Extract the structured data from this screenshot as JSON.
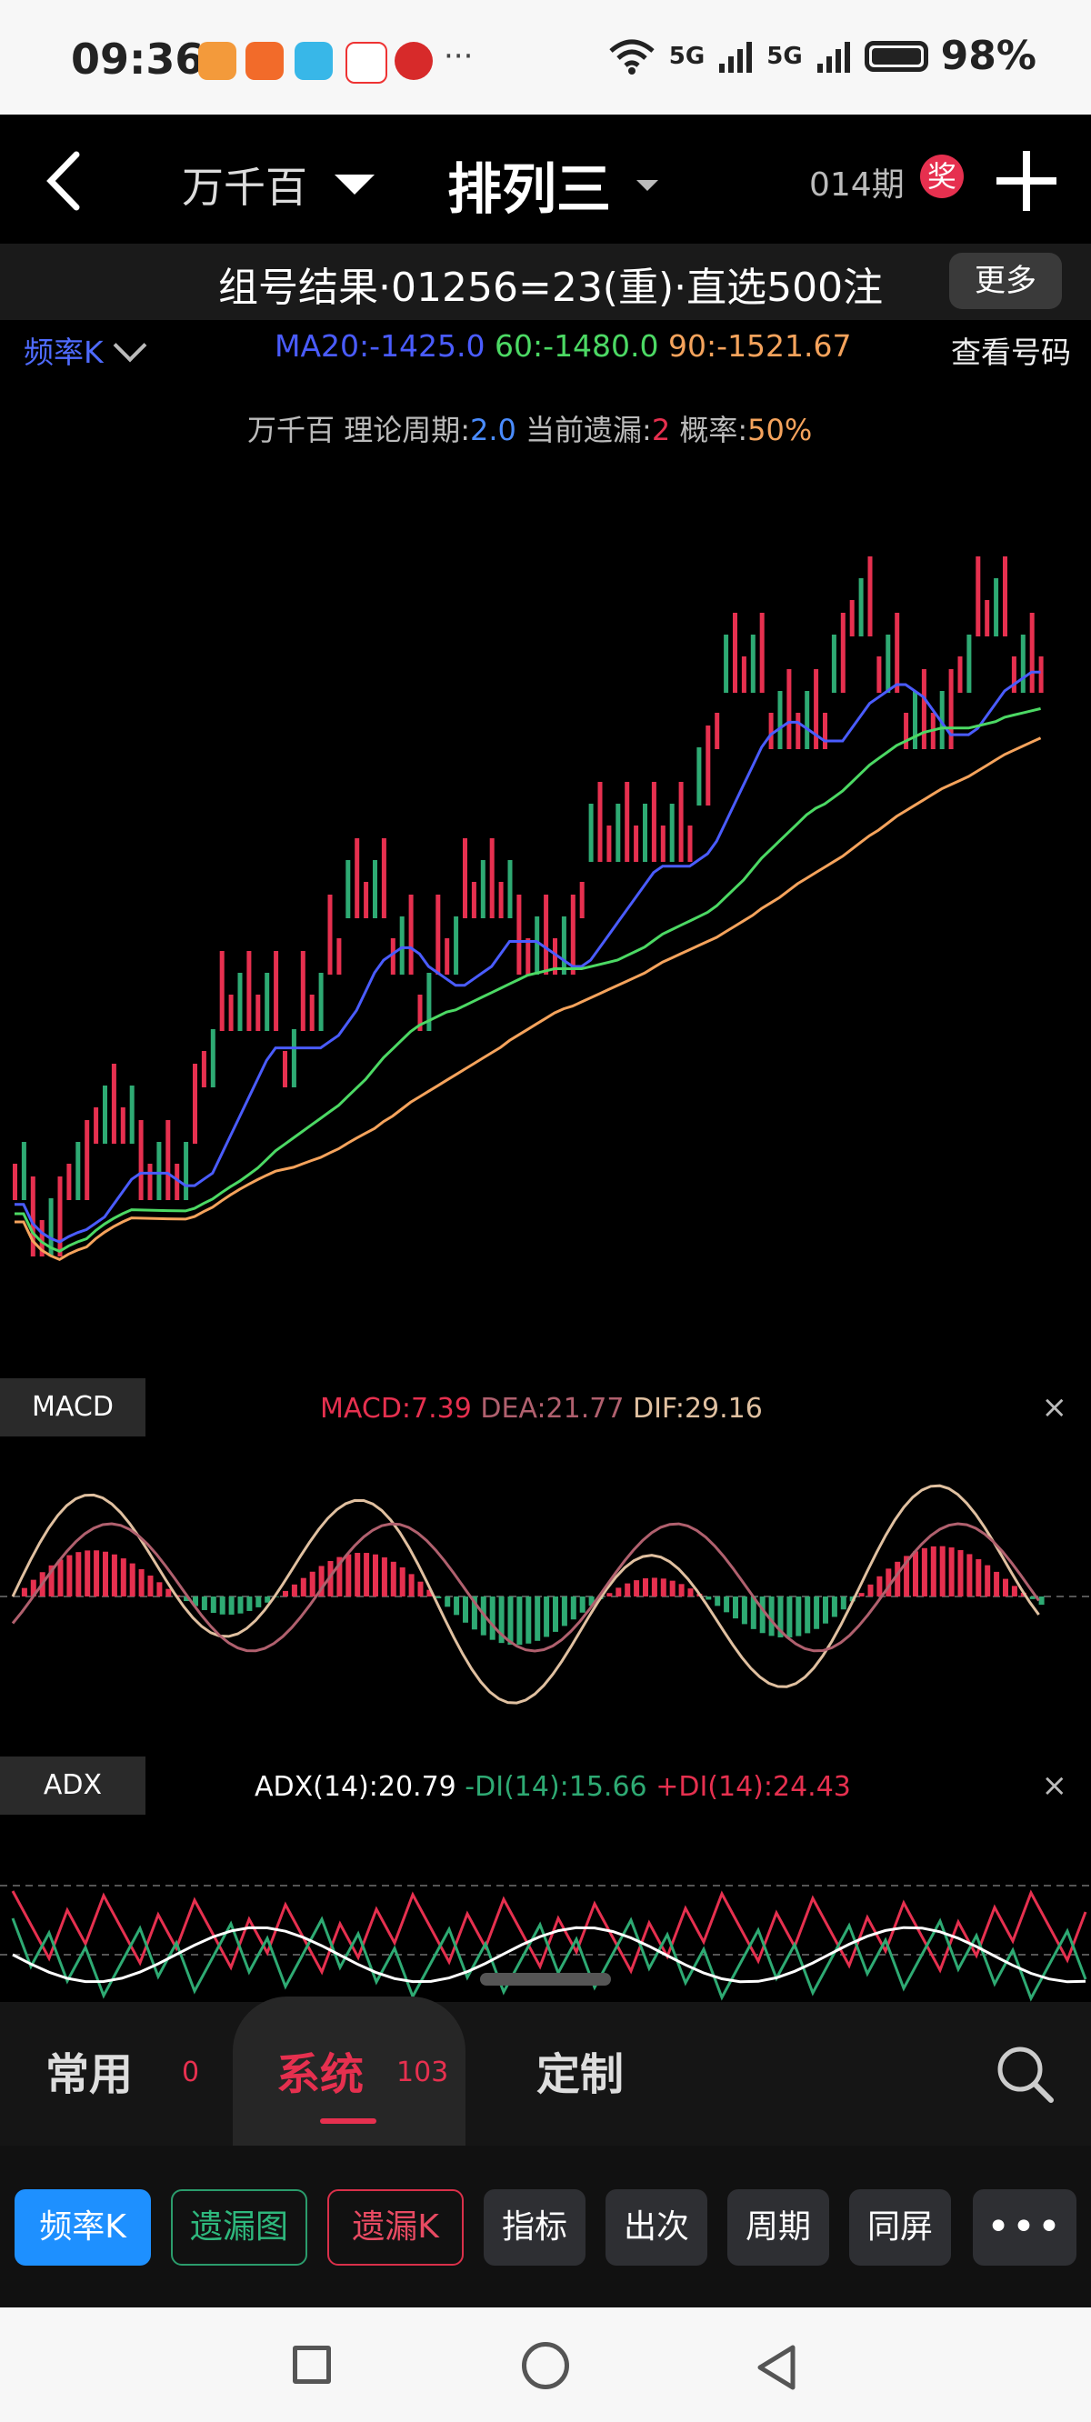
{
  "status_bar": {
    "time": "09:36",
    "network_left": "5G",
    "network_right": "5G",
    "battery": "98%",
    "more": "···"
  },
  "header": {
    "group": "万千百",
    "lottery": "排列三",
    "issue": "014期",
    "prize_badge": "奖"
  },
  "result_bar": {
    "text": "组号结果·01256=23(重)·直选500注",
    "more_button": "更多"
  },
  "indicator_line": {
    "freq_label": "频率K",
    "ma20": "MA20:-1425.0",
    "ma60": "60:-1480.0",
    "ma90": "90:-1521.67",
    "view_numbers": "查看号码"
  },
  "theory": {
    "group": "万千百",
    "cycle_label": "理论周期:",
    "cycle_value": "2.0",
    "miss_label": "当前遗漏:",
    "miss_value": "2",
    "prob_label": "概率:",
    "prob_value": "50%"
  },
  "macd_panel": {
    "tag": "MACD",
    "macd": "MACD:7.39",
    "dea": "DEA:21.77",
    "dif": "DIF:29.16",
    "close": "×"
  },
  "adx_panel": {
    "tag": "ADX",
    "adx": "ADX(14):20.79",
    "mdi": "-DI(14):15.66",
    "pdi": "+DI(14):24.43",
    "close": "×"
  },
  "tabs": [
    {
      "label": "常用",
      "count": "0"
    },
    {
      "label": "系统",
      "count": "103"
    },
    {
      "label": "定制",
      "count": ""
    }
  ],
  "buttons": [
    {
      "label": "频率K"
    },
    {
      "label": "遗漏图"
    },
    {
      "label": "遗漏K"
    },
    {
      "label": "指标"
    },
    {
      "label": "出次"
    },
    {
      "label": "周期"
    },
    {
      "label": "同屏"
    },
    {
      "label": "•••"
    }
  ],
  "colors": {
    "up": "#e6304f",
    "down": "#2eaa73",
    "ma20": "#4a5cff",
    "ma60": "#4cd964",
    "ma90": "#f5a35c",
    "accent_blue": "#1e90ff"
  }
}
